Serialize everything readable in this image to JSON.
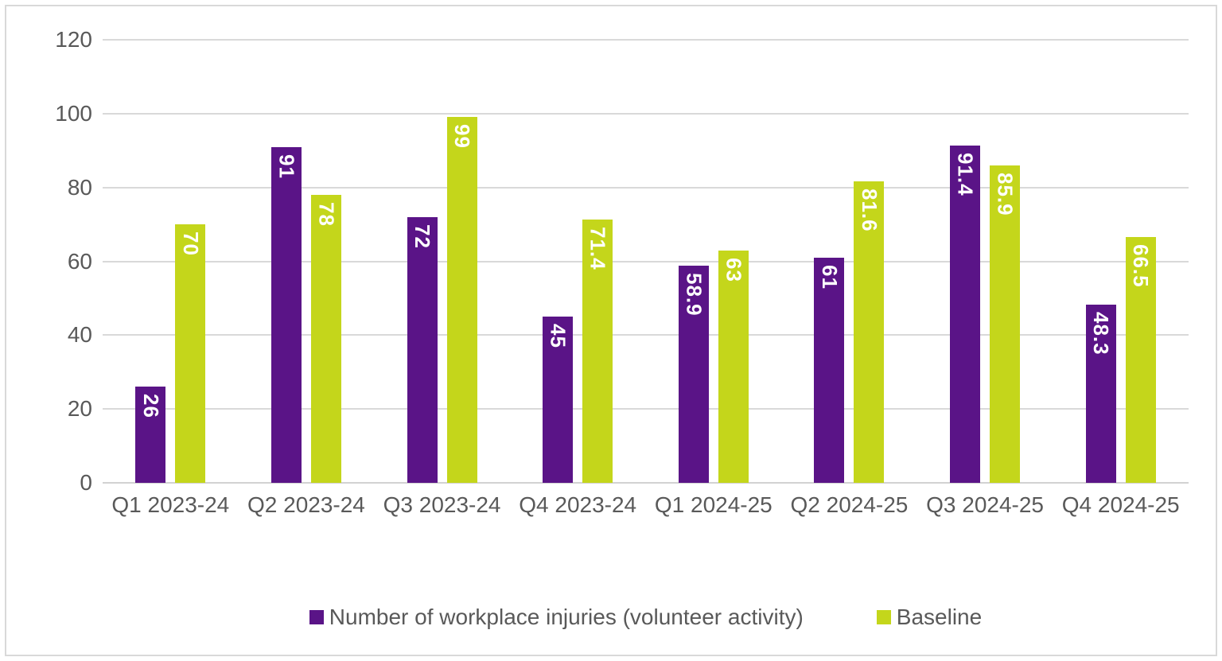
{
  "chart_data": {
    "type": "bar",
    "categories": [
      "Q1 2023-24",
      "Q2 2023-24",
      "Q3 2023-24",
      "Q4 2023-24",
      "Q1 2024-25",
      "Q2 2024-25",
      "Q3 2024-25",
      "Q4 2024-25"
    ],
    "series": [
      {
        "name": "Number of workplace injuries (volunteer activity)",
        "color": "#5a1487",
        "values": [
          26,
          91,
          72,
          45,
          58.9,
          61,
          91.4,
          48.3
        ],
        "labels": [
          "26",
          "91",
          "72",
          "45",
          "58.9",
          "61",
          "91.4",
          "48.3"
        ]
      },
      {
        "name": "Baseline",
        "color": "#c4d61b",
        "values": [
          70,
          78,
          99,
          71.4,
          63,
          81.6,
          85.9,
          66.5
        ],
        "labels": [
          "70",
          "78",
          "99",
          "71.4",
          "63",
          "81.6",
          "85.9",
          "66.5"
        ]
      }
    ],
    "title": "",
    "xlabel": "",
    "ylabel": "",
    "ylim": [
      0,
      120
    ],
    "yticks": [
      0,
      20,
      40,
      60,
      80,
      100,
      120
    ],
    "grid": true,
    "legend_position": "bottom",
    "data_labels": {
      "rotation": 90,
      "color": "#ffffff",
      "position": "inside-top"
    },
    "colors": {
      "grid": "#d9d9d9",
      "axis_text": "#595959",
      "background": "#ffffff",
      "border": "#d9d9d9"
    }
  }
}
